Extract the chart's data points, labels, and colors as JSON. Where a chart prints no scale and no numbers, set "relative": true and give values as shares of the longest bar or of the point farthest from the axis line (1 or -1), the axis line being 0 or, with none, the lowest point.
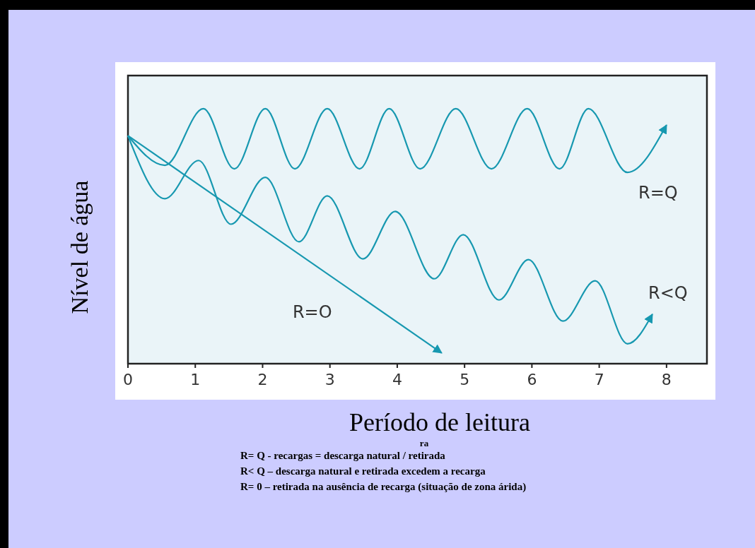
{
  "chart_data": {
    "type": "line",
    "relative": true,
    "xlabel": "Período de leitura",
    "ylabel": "Nível de água",
    "xlim": [
      0,
      8.6
    ],
    "xticks": [
      0,
      1,
      2,
      3,
      4,
      5,
      6,
      7,
      8
    ],
    "tick_labels": "x",
    "series": [
      {
        "name": "R=Q",
        "color": "#1798b0",
        "x": [
          0,
          0.55,
          1.12,
          1.58,
          2.04,
          2.48,
          2.96,
          3.44,
          3.88,
          4.34,
          4.87,
          5.4,
          5.93,
          6.41,
          6.84,
          7.42,
          8.0
        ],
        "values": [
          0.894,
          0.778,
          1.0,
          0.764,
          1.0,
          0.764,
          1.0,
          0.764,
          1.0,
          0.764,
          1.0,
          0.764,
          1.0,
          0.764,
          1.0,
          0.75,
          0.936
        ]
      },
      {
        "name": "R<Q",
        "color": "#1798b0",
        "x": [
          0,
          0.55,
          1.05,
          1.53,
          2.04,
          2.54,
          2.96,
          3.49,
          3.97,
          4.55,
          4.98,
          5.51,
          5.95,
          6.46,
          6.94,
          7.42,
          7.79
        ],
        "values": [
          0.894,
          0.647,
          0.797,
          0.547,
          0.731,
          0.478,
          0.658,
          0.411,
          0.597,
          0.333,
          0.506,
          0.25,
          0.408,
          0.167,
          0.325,
          0.078,
          0.194
        ]
      },
      {
        "name": "R=O",
        "color": "#1798b0",
        "x": [
          0,
          4.66
        ],
        "values": [
          0.894,
          0.042
        ]
      }
    ],
    "annotations": [
      "ra",
      "R= Q - recargas = descarga natural / retirada",
      "R< Q – descarga natural e retirada excedem a recarga",
      "R= 0 – retirada na ausência de recarga (situação de zona árida)"
    ]
  }
}
